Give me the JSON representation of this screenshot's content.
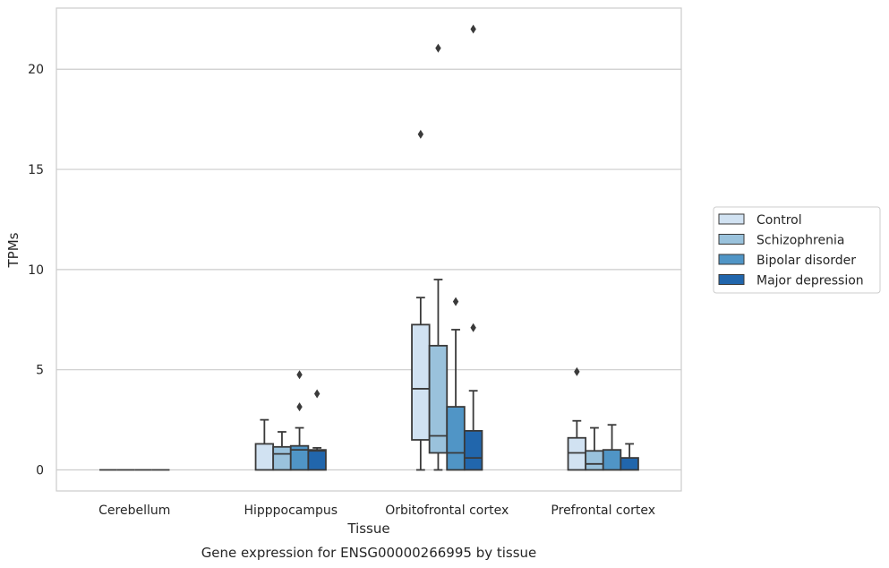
{
  "chart_data": {
    "type": "box",
    "title": "Gene expression for ENSG00000266995 by tissue",
    "xlabel": "Tissue",
    "ylabel": "TPMs",
    "ylim": [
      -1.05,
      23.05
    ],
    "yticks": [
      0,
      5,
      10,
      15,
      20
    ],
    "grid": "horizontal",
    "legend_position": "right",
    "categories": [
      "Cerebellum",
      "Hipppocampus",
      "Orbitofrontal cortex",
      "Prefrontal cortex"
    ],
    "series": [
      {
        "name": "Control",
        "color": "#d1e2f2",
        "boxes": [
          {
            "min": 0,
            "q1": 0,
            "median": 0,
            "q3": 0,
            "max": 0,
            "outliers": []
          },
          {
            "min": 0,
            "q1": 0,
            "median": 0,
            "q3": 1.3,
            "max": 2.5,
            "outliers": []
          },
          {
            "min": 0,
            "q1": 1.5,
            "median": 4.05,
            "q3": 7.25,
            "max": 8.6,
            "outliers": [
              16.75
            ]
          },
          {
            "min": 0,
            "q1": 0,
            "median": 0.85,
            "q3": 1.6,
            "max": 2.45,
            "outliers": [
              4.9
            ]
          }
        ]
      },
      {
        "name": "Schizophrenia",
        "color": "#9ac2dc",
        "boxes": [
          {
            "min": 0,
            "q1": 0,
            "median": 0,
            "q3": 0,
            "max": 0,
            "outliers": []
          },
          {
            "min": 0,
            "q1": 0,
            "median": 0.8,
            "q3": 1.15,
            "max": 1.9,
            "outliers": []
          },
          {
            "min": 0,
            "q1": 0.85,
            "median": 1.7,
            "q3": 6.2,
            "max": 9.5,
            "outliers": [
              21.05
            ]
          },
          {
            "min": 0,
            "q1": 0,
            "median": 0.3,
            "q3": 0.95,
            "max": 2.1,
            "outliers": []
          }
        ]
      },
      {
        "name": "Bipolar disorder",
        "color": "#5095c6",
        "boxes": [
          {
            "min": 0,
            "q1": 0,
            "median": 0,
            "q3": 0,
            "max": 0,
            "outliers": []
          },
          {
            "min": 0,
            "q1": 0,
            "median": 1.0,
            "q3": 1.2,
            "max": 2.1,
            "outliers": [
              3.15,
              4.75
            ]
          },
          {
            "min": 0,
            "q1": 0,
            "median": 0.85,
            "q3": 3.15,
            "max": 7.0,
            "outliers": [
              8.4
            ]
          },
          {
            "min": 0,
            "q1": 0,
            "median": 0,
            "q3": 1.0,
            "max": 2.25,
            "outliers": []
          }
        ]
      },
      {
        "name": "Major depression",
        "color": "#2166ac",
        "boxes": [
          {
            "min": 0,
            "q1": 0,
            "median": 0,
            "q3": 0,
            "max": 0,
            "outliers": []
          },
          {
            "min": 0,
            "q1": 0,
            "median": 0.95,
            "q3": 1.0,
            "max": 1.1,
            "outliers": [
              3.8
            ]
          },
          {
            "min": 0,
            "q1": 0,
            "median": 0.6,
            "q3": 1.95,
            "max": 3.95,
            "outliers": [
              7.1,
              22.0
            ]
          },
          {
            "min": 0,
            "q1": 0,
            "median": 0,
            "q3": 0.6,
            "max": 1.3,
            "outliers": []
          }
        ]
      }
    ]
  }
}
